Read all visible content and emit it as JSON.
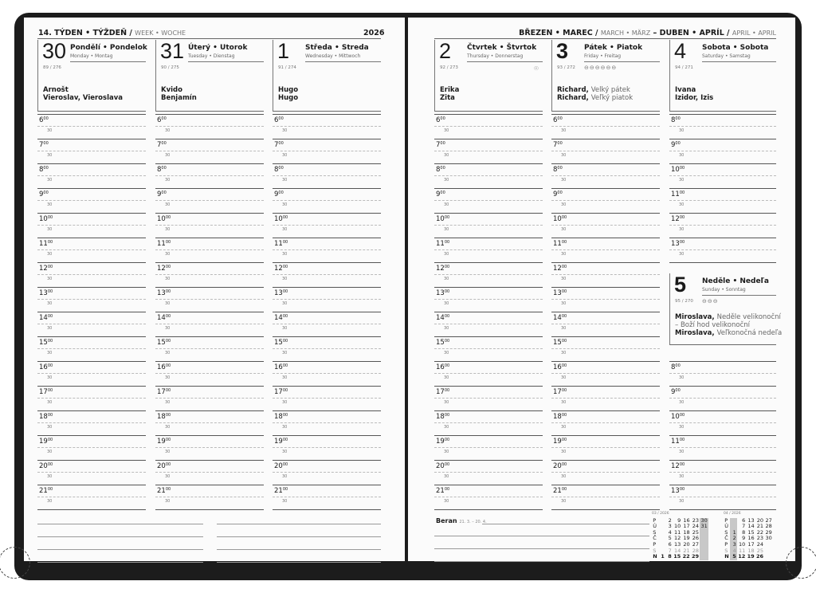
{
  "left_header": {
    "week": "14. TÝDEN • TÝŽDEŇ /",
    "week_en": "WEEK • WOCHE",
    "year": "2026"
  },
  "right_header": {
    "m1": "BŘEZEN • MAREC /",
    "m1_en": "MARCH • MÄRZ",
    "sep": "–",
    "m2": "DUBEN • APRÍL /",
    "m2_en": "APRIL • APRIL"
  },
  "days": [
    {
      "num": "30",
      "name": "Pondělí • Pondelok",
      "sub": "Monday • Montag",
      "count": "89 / 276",
      "names": [
        [
          "Arnošt",
          ""
        ],
        [
          "Vieroslav, Vieroslava",
          ""
        ]
      ],
      "symbols": ""
    },
    {
      "num": "31",
      "name": "Úterý • Utorok",
      "sub": "Tuesday • Dienstag",
      "count": "90 / 275",
      "names": [
        [
          "Kvido",
          ""
        ],
        [
          "Benjamín",
          ""
        ]
      ],
      "symbols": ""
    },
    {
      "num": "1",
      "name": "Středa • Streda",
      "sub": "Wednesday • Mittwoch",
      "count": "91 / 274",
      "names": [
        [
          "Hugo",
          ""
        ],
        [
          "Hugo",
          ""
        ]
      ],
      "symbols": ""
    },
    {
      "num": "2",
      "name": "Čtvrtek • Štvrtok",
      "sub": "Thursday • Donnerstag",
      "count": "92 / 273",
      "names": [
        [
          "Erika",
          ""
        ],
        [
          "Zita",
          ""
        ]
      ],
      "symbols": "☉"
    },
    {
      "num": "3",
      "name": "Pátek • Piatok",
      "sub": "Friday • Freitag",
      "count": "93 / 272",
      "names": [
        [
          "Richard,",
          "Velký pátek"
        ],
        [
          "Richard,",
          "Veľký piatok"
        ]
      ],
      "symbols": "⊖⊖⊖⊖⊖⊖",
      "bold": true
    },
    {
      "num": "4",
      "name": "Sobota • Sobota",
      "sub": "Saturday • Samstag",
      "count": "94 / 271",
      "names": [
        [
          "Ivana",
          ""
        ],
        [
          "Izidor, Izis",
          ""
        ]
      ],
      "symbols": ""
    },
    {
      "num": "5",
      "name": "Neděle • Nedeľa",
      "sub": "Sunday • Sonntag",
      "count": "95 / 270",
      "names": [
        [
          "Miroslava,",
          "Neděle velikonoční"
        ],
        [
          "",
          "– Boží hod velikonoční"
        ],
        [
          "Miroslava,",
          "Veľkonočná nedeľa"
        ]
      ],
      "symbols": "⊖⊖⊖",
      "bold": true
    }
  ],
  "hours_full": [
    "6",
    "7",
    "8",
    "9",
    "10",
    "11",
    "12",
    "13",
    "14",
    "15",
    "16",
    "17",
    "18",
    "19",
    "20",
    "21"
  ],
  "hours_weekend": [
    "8",
    "9",
    "10",
    "11",
    "12",
    "13"
  ],
  "minute_label": "30",
  "hour_suffix": "00",
  "zodiac": {
    "sign": "Beran",
    "range": "21. 3. – 20. 4."
  },
  "mini_calendars": [
    {
      "title": "03 / 2026",
      "highlight": 5,
      "rows": [
        [
          "P",
          "",
          "2",
          "9",
          "16",
          "23",
          "30"
        ],
        [
          "Ú",
          "",
          "3",
          "10",
          "17",
          "24",
          "31"
        ],
        [
          "S",
          "",
          "4",
          "11",
          "18",
          "25",
          ""
        ],
        [
          "Č",
          "",
          "5",
          "12",
          "19",
          "26",
          ""
        ],
        [
          "P",
          "",
          "6",
          "13",
          "20",
          "27",
          ""
        ],
        [
          "S",
          "",
          "7",
          "14",
          "21",
          "28",
          ""
        ],
        [
          "N",
          "1",
          "8",
          "15",
          "22",
          "29",
          ""
        ]
      ]
    },
    {
      "title": "04 / 2026",
      "highlight": 0,
      "rows": [
        [
          "P",
          "",
          "6",
          "13",
          "20",
          "27"
        ],
        [
          "Ú",
          "",
          "7",
          "14",
          "21",
          "28"
        ],
        [
          "S",
          "1",
          "8",
          "15",
          "22",
          "29"
        ],
        [
          "Č",
          "2",
          "9",
          "16",
          "23",
          "30"
        ],
        [
          "P",
          "3",
          "10",
          "17",
          "24",
          ""
        ],
        [
          "S",
          "4",
          "11",
          "18",
          "25",
          ""
        ],
        [
          "N",
          "5",
          "12",
          "19",
          "26",
          ""
        ]
      ]
    }
  ]
}
